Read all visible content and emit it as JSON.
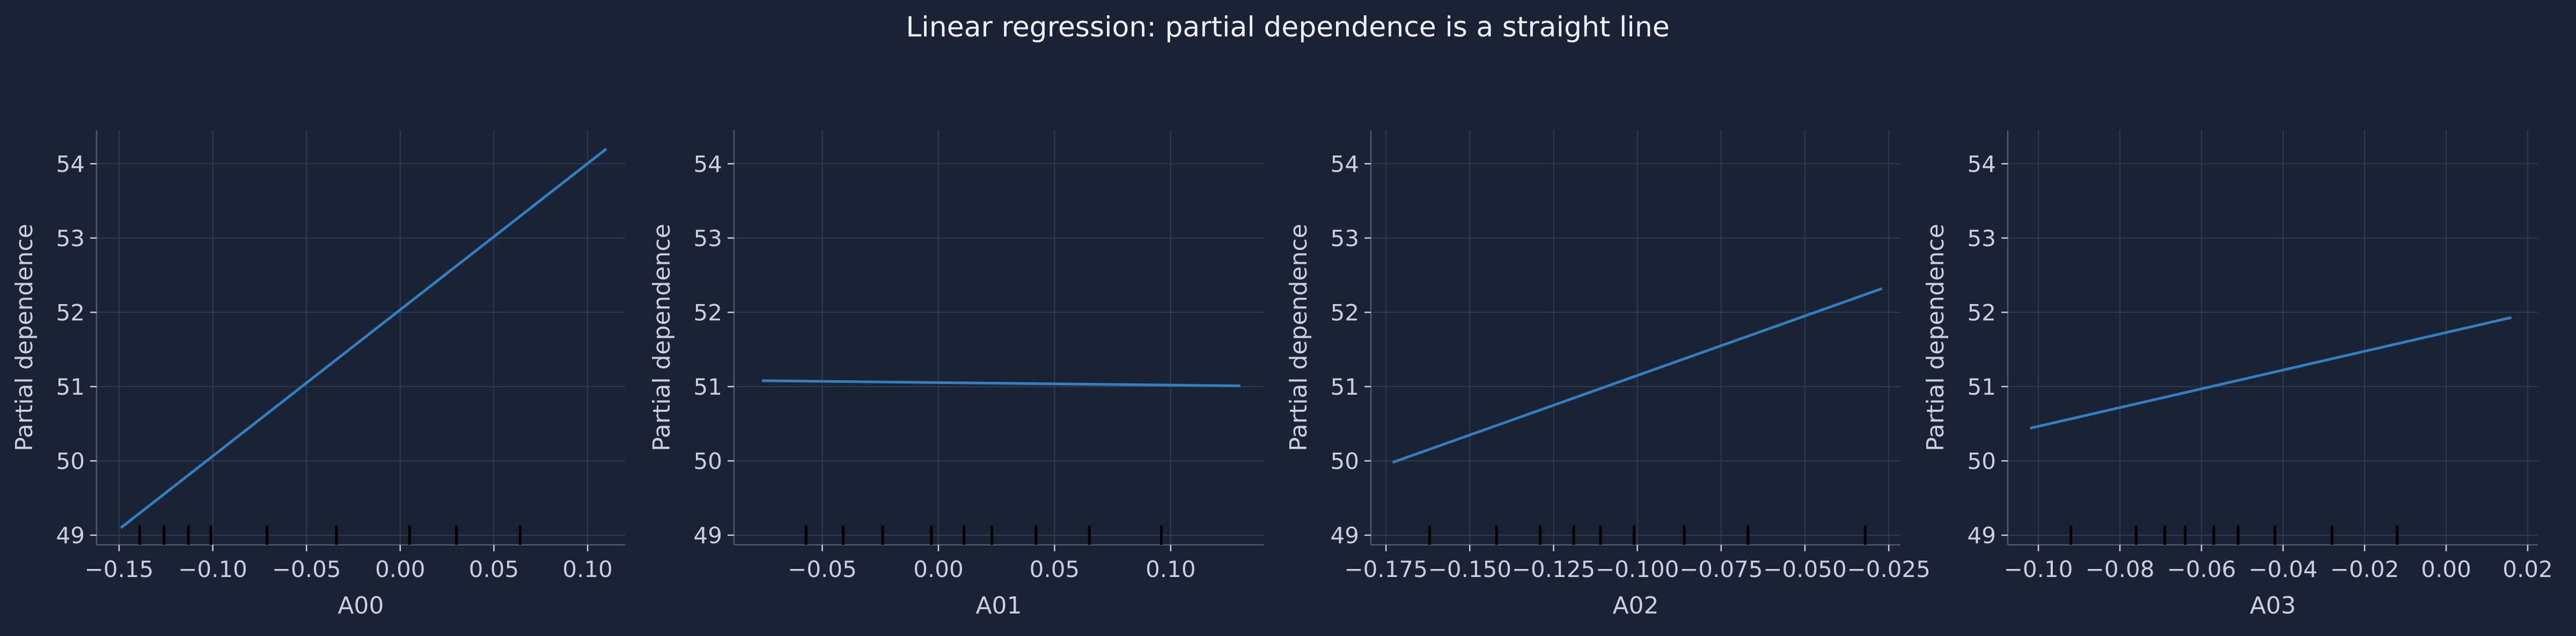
{
  "suptitle": "Linear regression: partial dependence is a straight line",
  "colors": {
    "line": "#2f7fc1",
    "rug": "#000000"
  },
  "chart_data": [
    {
      "type": "line",
      "xlabel": "A00",
      "ylabel": "Partial dependence",
      "xlim": [
        -0.162,
        0.12
      ],
      "ylim": [
        48.87,
        54.45
      ],
      "xticks": [
        -0.15,
        -0.1,
        -0.05,
        0.0,
        0.05,
        0.1
      ],
      "xticklabels": [
        "−0.15",
        "−0.10",
        "−0.05",
        "0.00",
        "0.05",
        "0.10"
      ],
      "yticks": [
        49,
        50,
        51,
        52,
        53,
        54
      ],
      "yticklabels": [
        "49",
        "50",
        "51",
        "52",
        "53",
        "54"
      ],
      "grid": true,
      "series": [
        {
          "x": [
            -0.149,
            0.11
          ],
          "y": [
            49.1,
            54.2
          ]
        }
      ],
      "rug": [
        -0.139,
        -0.126,
        -0.113,
        -0.101,
        -0.071,
        -0.034,
        0.005,
        0.03,
        0.064
      ]
    },
    {
      "type": "line",
      "xlabel": "A01",
      "ylabel": "Partial dependence",
      "xlim": [
        -0.088,
        0.14
      ],
      "ylim": [
        48.87,
        54.45
      ],
      "xticks": [
        -0.05,
        0.0,
        0.05,
        0.1
      ],
      "xticklabels": [
        "−0.05",
        "0.00",
        "0.05",
        "0.10"
      ],
      "yticks": [
        49,
        50,
        51,
        52,
        53,
        54
      ],
      "yticklabels": [
        "49",
        "50",
        "51",
        "52",
        "53",
        "54"
      ],
      "grid": true,
      "series": [
        {
          "x": [
            -0.076,
            0.13
          ],
          "y": [
            51.08,
            51.01
          ]
        }
      ],
      "rug": [
        -0.057,
        -0.041,
        -0.024,
        -0.003,
        0.011,
        0.023,
        0.042,
        0.065,
        0.096
      ]
    },
    {
      "type": "line",
      "xlabel": "A02",
      "ylabel": "Partial dependence",
      "xlim": [
        -0.1795,
        -0.0215
      ],
      "ylim": [
        48.87,
        54.45
      ],
      "xticks": [
        -0.175,
        -0.15,
        -0.125,
        -0.1,
        -0.075,
        -0.05,
        -0.025
      ],
      "xticklabels": [
        "−0.175",
        "−0.150",
        "−0.125",
        "−0.100",
        "−0.075",
        "−0.050",
        "−0.025"
      ],
      "yticks": [
        49,
        50,
        51,
        52,
        53,
        54
      ],
      "yticklabels": [
        "49",
        "50",
        "51",
        "52",
        "53",
        "54"
      ],
      "grid": true,
      "series": [
        {
          "x": [
            -0.173,
            -0.027
          ],
          "y": [
            49.98,
            52.32
          ]
        }
      ],
      "rug": [
        -0.162,
        -0.142,
        -0.129,
        -0.119,
        -0.111,
        -0.101,
        -0.086,
        -0.067,
        -0.032
      ]
    },
    {
      "type": "line",
      "xlabel": "A03",
      "ylabel": "Partial dependence",
      "xlim": [
        -0.1075,
        0.0225
      ],
      "ylim": [
        48.87,
        54.45
      ],
      "xticks": [
        -0.1,
        -0.08,
        -0.06,
        -0.04,
        -0.02,
        0.0,
        0.02
      ],
      "xticklabels": [
        "−0.10",
        "−0.08",
        "−0.06",
        "−0.04",
        "−0.02",
        "0.00",
        "0.02"
      ],
      "yticks": [
        49,
        50,
        51,
        52,
        53,
        54
      ],
      "yticklabels": [
        "49",
        "50",
        "51",
        "52",
        "53",
        "54"
      ],
      "grid": true,
      "series": [
        {
          "x": [
            -0.102,
            0.016
          ],
          "y": [
            50.44,
            51.93
          ]
        }
      ],
      "rug": [
        -0.092,
        -0.076,
        -0.069,
        -0.064,
        -0.057,
        -0.051,
        -0.042,
        -0.028,
        -0.012
      ]
    }
  ]
}
